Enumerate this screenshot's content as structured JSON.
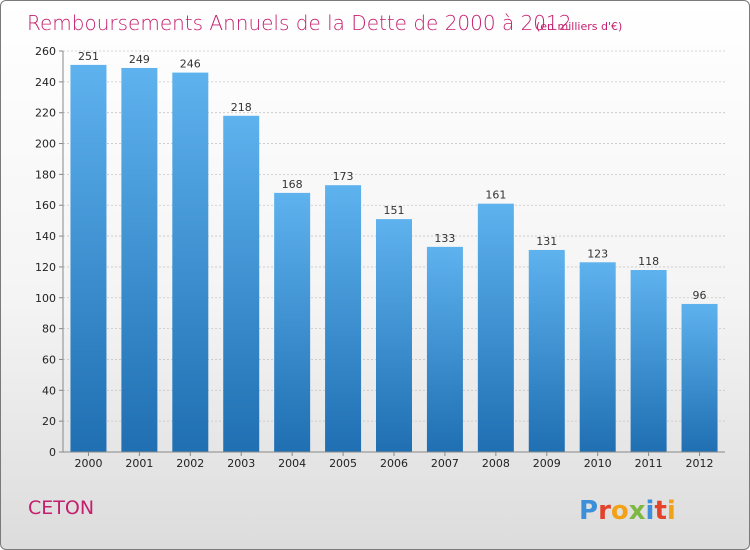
{
  "chart_data": {
    "type": "bar",
    "title": "Remboursements Annuels de la Dette de 2000 à 2012",
    "subtitle": "(en milliers d'€)",
    "categories": [
      "2000",
      "2001",
      "2002",
      "2003",
      "2004",
      "2005",
      "2006",
      "2007",
      "2008",
      "2009",
      "2010",
      "2011",
      "2012"
    ],
    "values": [
      251,
      249,
      246,
      218,
      168,
      173,
      151,
      133,
      161,
      131,
      123,
      118,
      96
    ],
    "ylim": [
      0,
      260
    ],
    "yticks": [
      0,
      20,
      40,
      60,
      80,
      100,
      120,
      140,
      160,
      180,
      200,
      220,
      240,
      260
    ],
    "grid": true,
    "bar_color": "#3a8fd6"
  },
  "footer": {
    "place": "CETON",
    "brand": "Proxiti"
  },
  "colors": {
    "accent": "#c41e6e",
    "bar_top": "#5aadeb",
    "bar_bottom": "#1f6fb2"
  }
}
